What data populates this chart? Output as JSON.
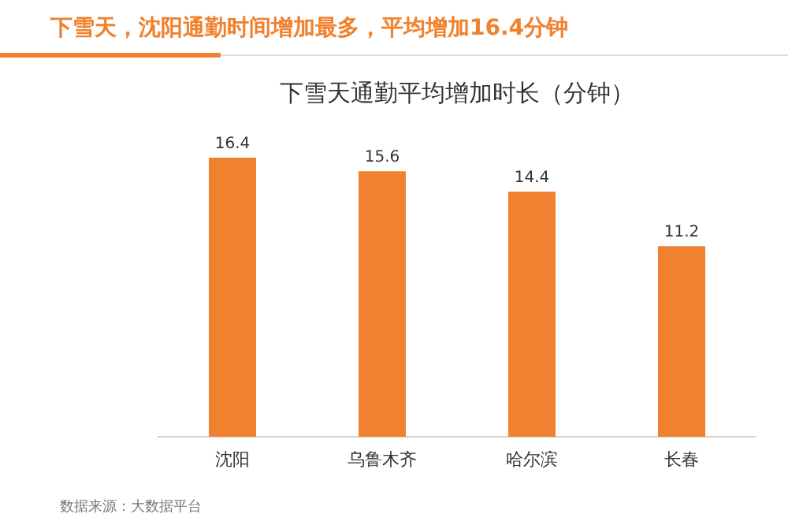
{
  "chart_data": {
    "type": "bar",
    "title": "下雪天，沈阳通勤时间增加最多，平均增加16.4分钟",
    "subtitle": "下雪天通勤平均增加时长（分钟）",
    "categories": [
      "沈阳",
      "乌鲁木齐",
      "哈尔滨",
      "长春"
    ],
    "values": [
      16.4,
      15.6,
      14.4,
      11.2
    ],
    "color": "#f0812e",
    "data_labels": true,
    "annotations": [
      "数据来源：大数据平台"
    ]
  }
}
